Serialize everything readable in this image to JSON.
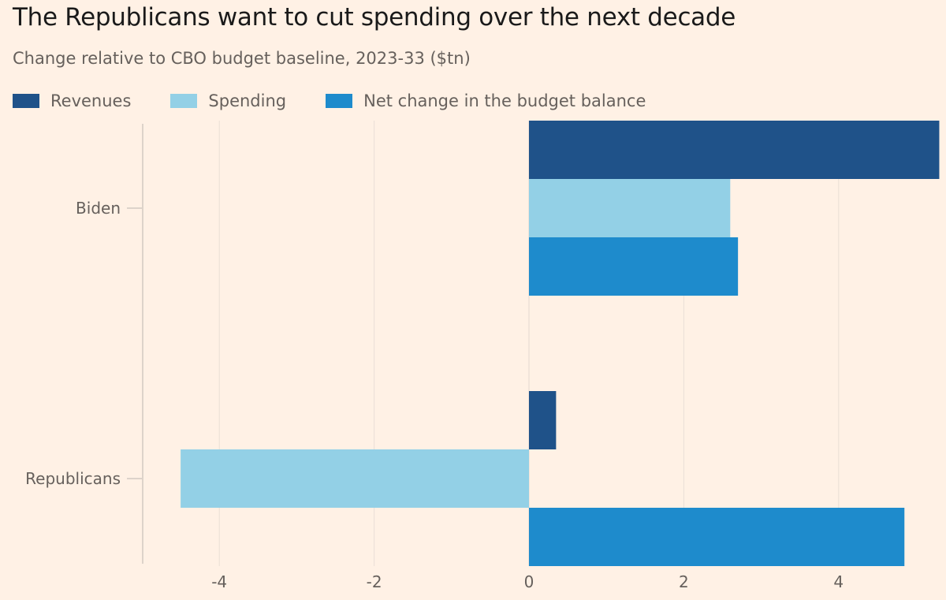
{
  "chart_data": {
    "type": "bar",
    "orientation": "horizontal",
    "title": "The Republicans want to cut spending over the next decade",
    "subtitle": "Change relative to CBO budget baseline, 2023-33 ($tn)",
    "xlabel": "",
    "ylabel": "",
    "xlim": [
      -5,
      5.3
    ],
    "x_ticks": [
      -4,
      -2,
      0,
      2,
      4
    ],
    "x_tick_labels": [
      "-4",
      "-2",
      "0",
      "2",
      "4"
    ],
    "grid": true,
    "legend_position": "top-left",
    "categories": [
      "Biden",
      "Republicans"
    ],
    "series": [
      {
        "name": "Revenues",
        "color": "#1f5289",
        "values": [
          5.3,
          0.35
        ]
      },
      {
        "name": "Spending",
        "color": "#93d0e6",
        "values": [
          2.6,
          -4.5
        ]
      },
      {
        "name": "Net change in the budget balance",
        "color": "#1e8bcc",
        "values": [
          2.7,
          4.85
        ]
      }
    ]
  }
}
